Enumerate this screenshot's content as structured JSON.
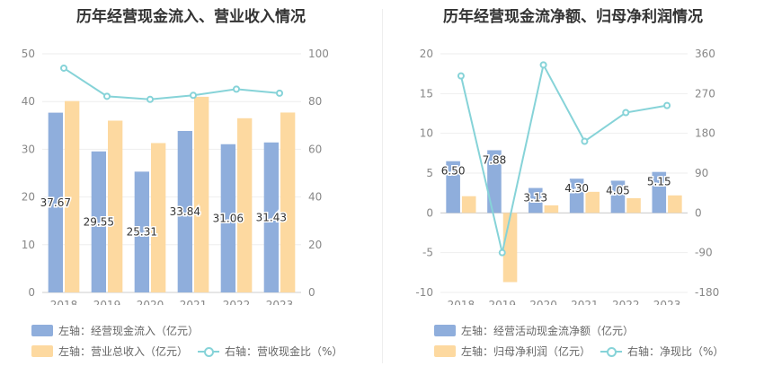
{
  "colors": {
    "bar_primary": "#8faedc",
    "bar_secondary": "#fdd9a0",
    "line": "#86d3d8",
    "grid": "#eeeeee",
    "axis_text": "#888888",
    "label_text": "#333333"
  },
  "chart_data": [
    {
      "type": "bar",
      "title": "历年经营现金流入、营业收入情况",
      "categories": [
        "2018",
        "2019",
        "2020",
        "2021",
        "2022",
        "2023"
      ],
      "series": [
        {
          "name": "左轴：经营现金流入（亿元）",
          "axis": "left",
          "values": [
            37.67,
            29.55,
            25.31,
            33.84,
            31.06,
            31.43
          ],
          "data_labels": [
            "37.67",
            "29.55",
            "25.31",
            "33.84",
            "31.06",
            "31.43"
          ]
        },
        {
          "name": "左轴：营业总收入（亿元）",
          "axis": "left",
          "values": [
            40.1,
            36.0,
            31.3,
            41.0,
            36.5,
            37.7
          ]
        },
        {
          "name": "右轴：营收现金比（%）",
          "axis": "right",
          "type": "line",
          "values": [
            94.0,
            82.2,
            80.9,
            82.6,
            85.2,
            83.5
          ]
        }
      ],
      "ylim_left": [
        0,
        50
      ],
      "yticks_left": [
        "0",
        "10",
        "20",
        "30",
        "40",
        "50"
      ],
      "ylim_right": [
        0,
        100
      ],
      "yticks_right": [
        "0",
        "20",
        "40",
        "60",
        "80",
        "100"
      ],
      "grid": true,
      "legend": "bottom"
    },
    {
      "type": "bar",
      "title": "历年经营现金流净额、归母净利润情况",
      "categories": [
        "2018",
        "2019",
        "2020",
        "2021",
        "2022",
        "2023"
      ],
      "series": [
        {
          "name": "左轴：经营活动现金流净额（亿元）",
          "axis": "left",
          "values": [
            6.5,
            7.88,
            3.13,
            4.3,
            4.05,
            5.15
          ],
          "data_labels": [
            "6.50",
            "7.88",
            "3.13",
            "4.30",
            "4.05",
            "5.15"
          ]
        },
        {
          "name": "左轴：归母净利润（亿元）",
          "axis": "left",
          "values": [
            2.1,
            -8.7,
            0.95,
            2.65,
            1.85,
            2.2
          ]
        },
        {
          "name": "右轴：净现比（%）",
          "axis": "right",
          "type": "line",
          "values": [
            310,
            -90,
            335,
            162,
            227,
            243
          ]
        }
      ],
      "ylim_left": [
        -10,
        20
      ],
      "yticks_left": [
        "-10",
        "-5",
        "0",
        "5",
        "10",
        "15",
        "20"
      ],
      "ylim_right": [
        -180,
        360
      ],
      "yticks_right": [
        "-180",
        "-90",
        "0",
        "90",
        "180",
        "270",
        "360"
      ],
      "grid": true,
      "legend": "bottom"
    }
  ]
}
